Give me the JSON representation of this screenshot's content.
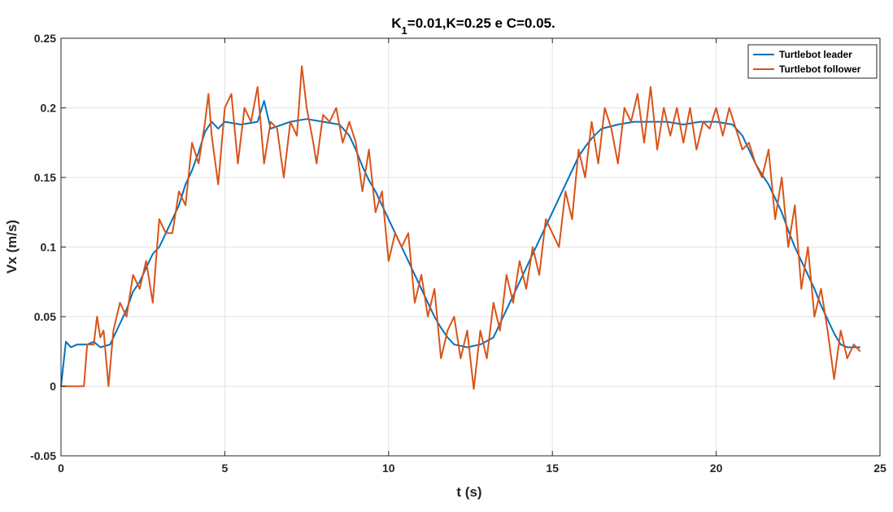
{
  "chart_data": {
    "type": "line",
    "title": {
      "prefix": "K",
      "subscript": "1",
      "rest": "=0.01,K=0.25 e C=0.05."
    },
    "xlabel": "t (s)",
    "ylabel": "Vx (m/s)",
    "xlim": [
      0,
      25
    ],
    "ylim": [
      -0.05,
      0.25
    ],
    "xticks": [
      0,
      5,
      10,
      15,
      20,
      25
    ],
    "xtick_labels": [
      "0",
      "5",
      "10",
      "15",
      "20",
      "25"
    ],
    "yticks": [
      -0.05,
      0,
      0.05,
      0.1,
      0.15,
      0.2,
      0.25
    ],
    "ytick_labels": [
      "-0.05",
      "0",
      "0.05",
      "0.1",
      "0.15",
      "0.2",
      "0.25"
    ],
    "grid": true,
    "legend_position": "top-right",
    "series": [
      {
        "name": "Turtlebot leader",
        "color": "#0072BD",
        "points": [
          [
            0,
            0
          ],
          [
            0.15,
            0.032
          ],
          [
            0.3,
            0.028
          ],
          [
            0.5,
            0.03
          ],
          [
            0.8,
            0.03
          ],
          [
            1.0,
            0.032
          ],
          [
            1.2,
            0.028
          ],
          [
            1.5,
            0.03
          ],
          [
            1.8,
            0.045
          ],
          [
            2.0,
            0.055
          ],
          [
            2.2,
            0.068
          ],
          [
            2.4,
            0.075
          ],
          [
            2.6,
            0.085
          ],
          [
            2.8,
            0.095
          ],
          [
            3.0,
            0.1
          ],
          [
            3.2,
            0.11
          ],
          [
            3.4,
            0.12
          ],
          [
            3.6,
            0.13
          ],
          [
            3.8,
            0.145
          ],
          [
            4.0,
            0.155
          ],
          [
            4.2,
            0.168
          ],
          [
            4.4,
            0.183
          ],
          [
            4.6,
            0.19
          ],
          [
            4.8,
            0.185
          ],
          [
            5.0,
            0.19
          ],
          [
            5.5,
            0.188
          ],
          [
            6.0,
            0.19
          ],
          [
            6.2,
            0.205
          ],
          [
            6.4,
            0.185
          ],
          [
            7.0,
            0.19
          ],
          [
            7.5,
            0.192
          ],
          [
            8.0,
            0.19
          ],
          [
            8.5,
            0.188
          ],
          [
            8.8,
            0.18
          ],
          [
            9.0,
            0.17
          ],
          [
            9.2,
            0.158
          ],
          [
            9.4,
            0.148
          ],
          [
            9.6,
            0.14
          ],
          [
            9.8,
            0.13
          ],
          [
            10.0,
            0.12
          ],
          [
            10.2,
            0.11
          ],
          [
            10.4,
            0.1
          ],
          [
            10.6,
            0.09
          ],
          [
            10.8,
            0.08
          ],
          [
            11.0,
            0.07
          ],
          [
            11.2,
            0.06
          ],
          [
            11.4,
            0.05
          ],
          [
            11.6,
            0.042
          ],
          [
            11.8,
            0.035
          ],
          [
            12.0,
            0.03
          ],
          [
            12.4,
            0.028
          ],
          [
            12.8,
            0.03
          ],
          [
            13.2,
            0.035
          ],
          [
            13.4,
            0.045
          ],
          [
            13.6,
            0.055
          ],
          [
            13.8,
            0.065
          ],
          [
            14.0,
            0.075
          ],
          [
            14.2,
            0.085
          ],
          [
            14.4,
            0.095
          ],
          [
            14.6,
            0.105
          ],
          [
            14.8,
            0.115
          ],
          [
            15.0,
            0.125
          ],
          [
            15.2,
            0.135
          ],
          [
            15.4,
            0.145
          ],
          [
            15.6,
            0.155
          ],
          [
            15.8,
            0.165
          ],
          [
            16.0,
            0.172
          ],
          [
            16.2,
            0.178
          ],
          [
            16.5,
            0.185
          ],
          [
            17.0,
            0.188
          ],
          [
            17.5,
            0.19
          ],
          [
            18.0,
            0.19
          ],
          [
            18.5,
            0.19
          ],
          [
            19.0,
            0.188
          ],
          [
            19.5,
            0.19
          ],
          [
            20.0,
            0.19
          ],
          [
            20.5,
            0.188
          ],
          [
            20.8,
            0.18
          ],
          [
            21.0,
            0.17
          ],
          [
            21.2,
            0.16
          ],
          [
            21.4,
            0.152
          ],
          [
            21.6,
            0.145
          ],
          [
            21.8,
            0.135
          ],
          [
            22.0,
            0.125
          ],
          [
            22.2,
            0.112
          ],
          [
            22.4,
            0.1
          ],
          [
            22.6,
            0.09
          ],
          [
            22.8,
            0.08
          ],
          [
            23.0,
            0.07
          ],
          [
            23.2,
            0.058
          ],
          [
            23.4,
            0.048
          ],
          [
            23.6,
            0.038
          ],
          [
            23.8,
            0.03
          ],
          [
            24.0,
            0.028
          ],
          [
            24.2,
            0.028
          ],
          [
            24.4,
            0.028
          ]
        ]
      },
      {
        "name": "Turtlebot follower",
        "color": "#D95319",
        "points": [
          [
            0,
            0
          ],
          [
            0.3,
            0
          ],
          [
            0.7,
            0
          ],
          [
            0.8,
            0.03
          ],
          [
            1.0,
            0.03
          ],
          [
            1.1,
            0.05
          ],
          [
            1.2,
            0.035
          ],
          [
            1.3,
            0.04
          ],
          [
            1.45,
            0.0
          ],
          [
            1.6,
            0.04
          ],
          [
            1.8,
            0.06
          ],
          [
            2.0,
            0.05
          ],
          [
            2.2,
            0.08
          ],
          [
            2.4,
            0.07
          ],
          [
            2.6,
            0.09
          ],
          [
            2.8,
            0.06
          ],
          [
            3.0,
            0.12
          ],
          [
            3.2,
            0.11
          ],
          [
            3.4,
            0.11
          ],
          [
            3.6,
            0.14
          ],
          [
            3.8,
            0.13
          ],
          [
            4.0,
            0.175
          ],
          [
            4.2,
            0.16
          ],
          [
            4.4,
            0.19
          ],
          [
            4.5,
            0.21
          ],
          [
            4.6,
            0.18
          ],
          [
            4.8,
            0.145
          ],
          [
            5.0,
            0.2
          ],
          [
            5.2,
            0.21
          ],
          [
            5.4,
            0.16
          ],
          [
            5.6,
            0.2
          ],
          [
            5.8,
            0.19
          ],
          [
            6.0,
            0.215
          ],
          [
            6.2,
            0.16
          ],
          [
            6.4,
            0.19
          ],
          [
            6.6,
            0.185
          ],
          [
            6.8,
            0.15
          ],
          [
            7.0,
            0.19
          ],
          [
            7.2,
            0.18
          ],
          [
            7.35,
            0.23
          ],
          [
            7.5,
            0.2
          ],
          [
            7.7,
            0.175
          ],
          [
            7.8,
            0.16
          ],
          [
            8.0,
            0.195
          ],
          [
            8.2,
            0.19
          ],
          [
            8.4,
            0.2
          ],
          [
            8.6,
            0.175
          ],
          [
            8.8,
            0.19
          ],
          [
            9.0,
            0.175
          ],
          [
            9.2,
            0.14
          ],
          [
            9.4,
            0.17
          ],
          [
            9.6,
            0.125
          ],
          [
            9.8,
            0.14
          ],
          [
            10.0,
            0.09
          ],
          [
            10.2,
            0.11
          ],
          [
            10.4,
            0.1
          ],
          [
            10.6,
            0.11
          ],
          [
            10.8,
            0.06
          ],
          [
            11.0,
            0.08
          ],
          [
            11.2,
            0.05
          ],
          [
            11.4,
            0.07
          ],
          [
            11.6,
            0.02
          ],
          [
            11.8,
            0.04
          ],
          [
            12.0,
            0.05
          ],
          [
            12.2,
            0.02
          ],
          [
            12.4,
            0.04
          ],
          [
            12.6,
            -0.002
          ],
          [
            12.8,
            0.04
          ],
          [
            13.0,
            0.02
          ],
          [
            13.2,
            0.06
          ],
          [
            13.4,
            0.04
          ],
          [
            13.6,
            0.08
          ],
          [
            13.8,
            0.06
          ],
          [
            14.0,
            0.09
          ],
          [
            14.2,
            0.07
          ],
          [
            14.4,
            0.1
          ],
          [
            14.6,
            0.08
          ],
          [
            14.8,
            0.12
          ],
          [
            15.0,
            0.11
          ],
          [
            15.2,
            0.1
          ],
          [
            15.4,
            0.14
          ],
          [
            15.6,
            0.12
          ],
          [
            15.8,
            0.17
          ],
          [
            16.0,
            0.15
          ],
          [
            16.2,
            0.19
          ],
          [
            16.4,
            0.16
          ],
          [
            16.6,
            0.2
          ],
          [
            16.8,
            0.185
          ],
          [
            17.0,
            0.16
          ],
          [
            17.2,
            0.2
          ],
          [
            17.4,
            0.19
          ],
          [
            17.6,
            0.21
          ],
          [
            17.8,
            0.175
          ],
          [
            18.0,
            0.215
          ],
          [
            18.2,
            0.17
          ],
          [
            18.4,
            0.2
          ],
          [
            18.6,
            0.18
          ],
          [
            18.8,
            0.2
          ],
          [
            19.0,
            0.175
          ],
          [
            19.2,
            0.2
          ],
          [
            19.4,
            0.17
          ],
          [
            19.6,
            0.19
          ],
          [
            19.8,
            0.185
          ],
          [
            20.0,
            0.2
          ],
          [
            20.2,
            0.18
          ],
          [
            20.4,
            0.2
          ],
          [
            20.6,
            0.185
          ],
          [
            20.8,
            0.17
          ],
          [
            21.0,
            0.175
          ],
          [
            21.2,
            0.16
          ],
          [
            21.4,
            0.15
          ],
          [
            21.6,
            0.17
          ],
          [
            21.8,
            0.12
          ],
          [
            22.0,
            0.15
          ],
          [
            22.2,
            0.1
          ],
          [
            22.4,
            0.13
          ],
          [
            22.6,
            0.07
          ],
          [
            22.8,
            0.1
          ],
          [
            23.0,
            0.05
          ],
          [
            23.2,
            0.07
          ],
          [
            23.4,
            0.04
          ],
          [
            23.6,
            0.005
          ],
          [
            23.8,
            0.04
          ],
          [
            24.0,
            0.02
          ],
          [
            24.2,
            0.03
          ],
          [
            24.4,
            0.025
          ]
        ]
      }
    ]
  }
}
